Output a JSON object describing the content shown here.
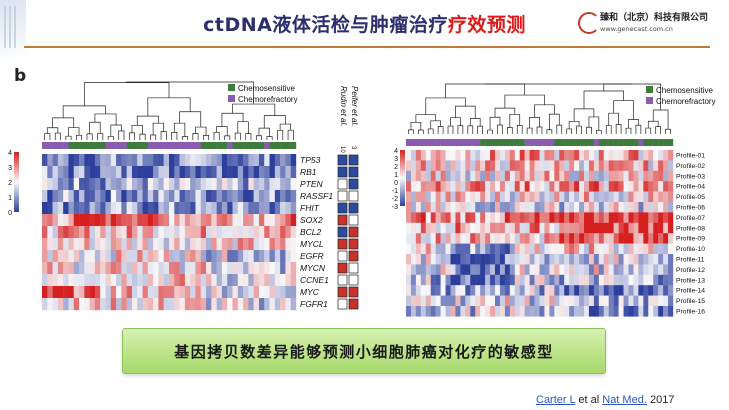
{
  "header": {
    "title_main": "ctDNA液体活检与肿瘤治疗",
    "title_highlight": "疗效预测",
    "logo_name": "臻和（北京）科技有限公司",
    "logo_url": "www.genecast.com.cn"
  },
  "panel_label": "b",
  "left_panel": {
    "legend": [
      "Chemosensitive",
      "Chemorefractory"
    ],
    "scale_ticks": [
      "4",
      "3",
      "2",
      "1",
      "0"
    ],
    "genes": [
      "TP53",
      "RB1",
      "PTEN",
      "RASSF1",
      "FHIT",
      "SOX2",
      "BCL2",
      "MYCL",
      "EGFR",
      "MYCN",
      "CCNE1",
      "MYC",
      "FGFR1"
    ],
    "annot_headers": [
      "Rudin et al.",
      "Peifer et al."
    ],
    "annot_header_nums": [
      "10",
      "3"
    ],
    "annot_colors": [
      [
        "blue",
        "blue"
      ],
      [
        "blue",
        "blue"
      ],
      [
        "white",
        "blue"
      ],
      [
        "white",
        "white"
      ],
      [
        "blue",
        "blue"
      ],
      [
        "red",
        "white"
      ],
      [
        "blue",
        "red"
      ],
      [
        "red",
        "red"
      ],
      [
        "white",
        "red"
      ],
      [
        "red",
        "white"
      ],
      [
        "white",
        "white"
      ],
      [
        "red",
        "red"
      ],
      [
        "white",
        "red"
      ]
    ]
  },
  "right_panel": {
    "legend": [
      "Chemosensitive",
      "Chemorefractory"
    ],
    "scale_ticks": [
      "4",
      "3",
      "2",
      "1",
      "0",
      "-1",
      "-2",
      "-3"
    ],
    "profiles": [
      "Profile-01",
      "Profile-02",
      "Profile-03",
      "Profile-04",
      "Profile-05",
      "Profile-06",
      "Profile-07",
      "Profile-08",
      "Profile-09",
      "Profile-10",
      "Profile-11",
      "Profile-12",
      "Profile-13",
      "Profile-14",
      "Profile-15",
      "Profile-16"
    ]
  },
  "colors": {
    "chemosensitive": "#3e7c3c",
    "chemorefractory": "#8a5bb0",
    "heat_high": "#d62020",
    "heat_low": "#2c3f9c",
    "annot_red": "#c8322a",
    "annot_blue": "#2e4aa0"
  },
  "banner": "基因拷贝数差异能够预测小细胞肺癌对化疗的敏感型",
  "citation": {
    "author": "Carter L",
    "middle": "et al",
    "journal": "Nat Med.",
    "year": "2017"
  }
}
